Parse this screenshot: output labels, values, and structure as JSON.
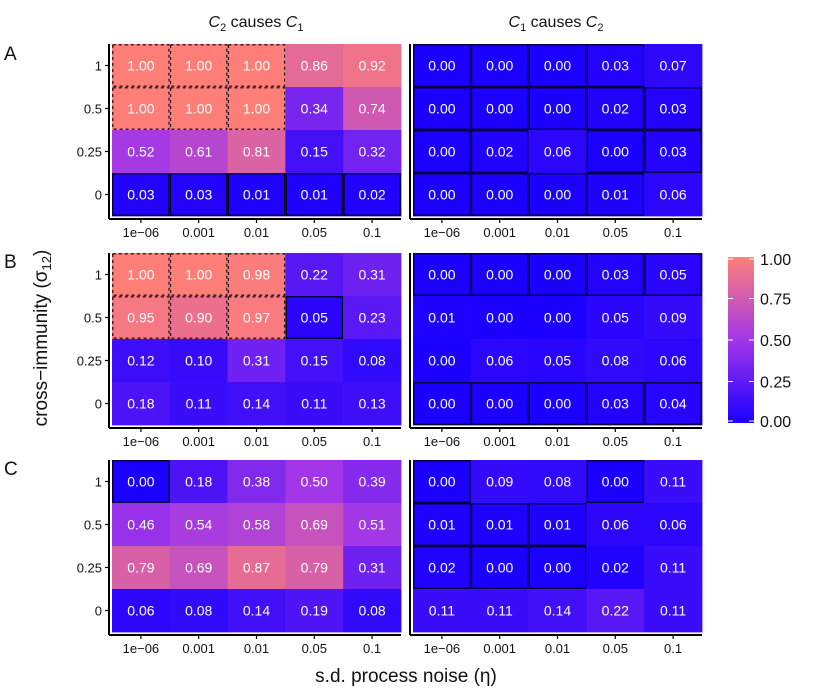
{
  "chart_data": {
    "type": "heatmap",
    "column_titles": [
      {
        "a": "C",
        "a_sub": "2",
        "mid": " causes ",
        "b": "C",
        "b_sub": "1"
      },
      {
        "a": "C",
        "a_sub": "1",
        "mid": " causes ",
        "b": "C",
        "b_sub": "2"
      }
    ],
    "x_categories": [
      "1e−06",
      "0.001",
      "0.01",
      "0.05",
      "0.1"
    ],
    "y_categories": [
      "1",
      "0.5",
      "0.25",
      "0"
    ],
    "xlabel": "s.d. process noise (η)",
    "ylabel_main": "cross−immunity (σ",
    "ylabel_sub": "12",
    "ylabel_close": ")",
    "legend": {
      "min": 0,
      "max": 1,
      "ticks": [
        "0.00",
        "0.25",
        "0.50",
        "0.75",
        "1.00"
      ],
      "low_color": "#1c00ff",
      "mid_color": "#a236e8",
      "high_color": "#ff7f78"
    },
    "panels": [
      {
        "label": "A",
        "grids": [
          {
            "values": [
              [
                "1.00",
                "1.00",
                "1.00",
                "0.86",
                "0.92"
              ],
              [
                "1.00",
                "1.00",
                "1.00",
                "0.34",
                "0.74"
              ],
              [
                "0.52",
                "0.61",
                "0.81",
                "0.15",
                "0.32"
              ],
              [
                "0.03",
                "0.03",
                "0.01",
                "0.01",
                "0.02"
              ]
            ],
            "solid": [
              [
                0,
                0,
                0,
                0,
                0
              ],
              [
                0,
                0,
                0,
                0,
                0
              ],
              [
                0,
                0,
                0,
                0,
                0
              ],
              [
                1,
                1,
                1,
                1,
                1
              ]
            ],
            "dashed": [
              [
                1,
                1,
                1,
                0,
                0
              ],
              [
                1,
                1,
                1,
                0,
                0
              ],
              [
                0,
                0,
                0,
                0,
                0
              ],
              [
                0,
                0,
                0,
                0,
                0
              ]
            ]
          },
          {
            "values": [
              [
                "0.00",
                "0.00",
                "0.00",
                "0.03",
                "0.07"
              ],
              [
                "0.00",
                "0.00",
                "0.00",
                "0.02",
                "0.03"
              ],
              [
                "0.00",
                "0.02",
                "0.06",
                "0.00",
                "0.03"
              ],
              [
                "0.00",
                "0.00",
                "0.00",
                "0.01",
                "0.06"
              ]
            ],
            "solid": [
              [
                1,
                1,
                1,
                1,
                0
              ],
              [
                1,
                1,
                1,
                1,
                1
              ],
              [
                1,
                1,
                0,
                1,
                1
              ],
              [
                1,
                1,
                1,
                1,
                0
              ]
            ],
            "dashed": [
              [
                0,
                0,
                0,
                0,
                0
              ],
              [
                0,
                0,
                0,
                0,
                0
              ],
              [
                0,
                0,
                0,
                0,
                0
              ],
              [
                0,
                0,
                0,
                0,
                0
              ]
            ]
          }
        ]
      },
      {
        "label": "B",
        "grids": [
          {
            "values": [
              [
                "1.00",
                "1.00",
                "0.98",
                "0.22",
                "0.31"
              ],
              [
                "0.95",
                "0.90",
                "0.97",
                "0.05",
                "0.23"
              ],
              [
                "0.12",
                "0.10",
                "0.31",
                "0.15",
                "0.08"
              ],
              [
                "0.18",
                "0.11",
                "0.14",
                "0.11",
                "0.13"
              ]
            ],
            "solid": [
              [
                0,
                0,
                0,
                0,
                0
              ],
              [
                0,
                0,
                0,
                1,
                0
              ],
              [
                0,
                0,
                0,
                0,
                0
              ],
              [
                0,
                0,
                0,
                0,
                0
              ]
            ],
            "dashed": [
              [
                1,
                1,
                1,
                0,
                0
              ],
              [
                1,
                1,
                1,
                0,
                0
              ],
              [
                0,
                0,
                0,
                0,
                0
              ],
              [
                0,
                0,
                0,
                0,
                0
              ]
            ]
          },
          {
            "values": [
              [
                "0.00",
                "0.00",
                "0.00",
                "0.03",
                "0.05"
              ],
              [
                "0.01",
                "0.00",
                "0.00",
                "0.05",
                "0.09"
              ],
              [
                "0.00",
                "0.06",
                "0.05",
                "0.08",
                "0.06"
              ],
              [
                "0.00",
                "0.00",
                "0.00",
                "0.03",
                "0.04"
              ]
            ],
            "solid": [
              [
                1,
                1,
                1,
                1,
                1
              ],
              [
                0,
                0,
                0,
                0,
                0
              ],
              [
                0,
                0,
                0,
                0,
                0
              ],
              [
                1,
                1,
                1,
                1,
                1
              ]
            ],
            "dashed": [
              [
                0,
                0,
                0,
                0,
                0
              ],
              [
                0,
                0,
                0,
                0,
                0
              ],
              [
                0,
                0,
                0,
                0,
                0
              ],
              [
                0,
                0,
                0,
                0,
                0
              ]
            ]
          }
        ]
      },
      {
        "label": "C",
        "grids": [
          {
            "values": [
              [
                "0.00",
                "0.18",
                "0.38",
                "0.50",
                "0.39"
              ],
              [
                "0.46",
                "0.54",
                "0.58",
                "0.69",
                "0.51"
              ],
              [
                "0.79",
                "0.69",
                "0.87",
                "0.79",
                "0.31"
              ],
              [
                "0.06",
                "0.08",
                "0.14",
                "0.19",
                "0.08"
              ]
            ],
            "solid": [
              [
                1,
                0,
                0,
                0,
                0
              ],
              [
                0,
                0,
                0,
                0,
                0
              ],
              [
                0,
                0,
                0,
                0,
                0
              ],
              [
                0,
                0,
                0,
                0,
                0
              ]
            ],
            "dashed": [
              [
                0,
                0,
                0,
                0,
                0
              ],
              [
                0,
                0,
                0,
                0,
                0
              ],
              [
                0,
                0,
                0,
                0,
                0
              ],
              [
                0,
                0,
                0,
                0,
                0
              ]
            ]
          },
          {
            "values": [
              [
                "0.00",
                "0.09",
                "0.08",
                "0.00",
                "0.11"
              ],
              [
                "0.01",
                "0.01",
                "0.01",
                "0.06",
                "0.06"
              ],
              [
                "0.02",
                "0.00",
                "0.00",
                "0.02",
                "0.11"
              ],
              [
                "0.11",
                "0.11",
                "0.14",
                "0.22",
                "0.11"
              ]
            ],
            "solid": [
              [
                1,
                0,
                0,
                1,
                0
              ],
              [
                1,
                1,
                1,
                0,
                0
              ],
              [
                1,
                1,
                1,
                0,
                0
              ],
              [
                0,
                0,
                0,
                0,
                0
              ]
            ],
            "dashed": [
              [
                0,
                0,
                0,
                0,
                0
              ],
              [
                0,
                0,
                0,
                0,
                0
              ],
              [
                0,
                0,
                0,
                0,
                0
              ],
              [
                0,
                0,
                0,
                0,
                0
              ]
            ]
          }
        ]
      }
    ]
  }
}
